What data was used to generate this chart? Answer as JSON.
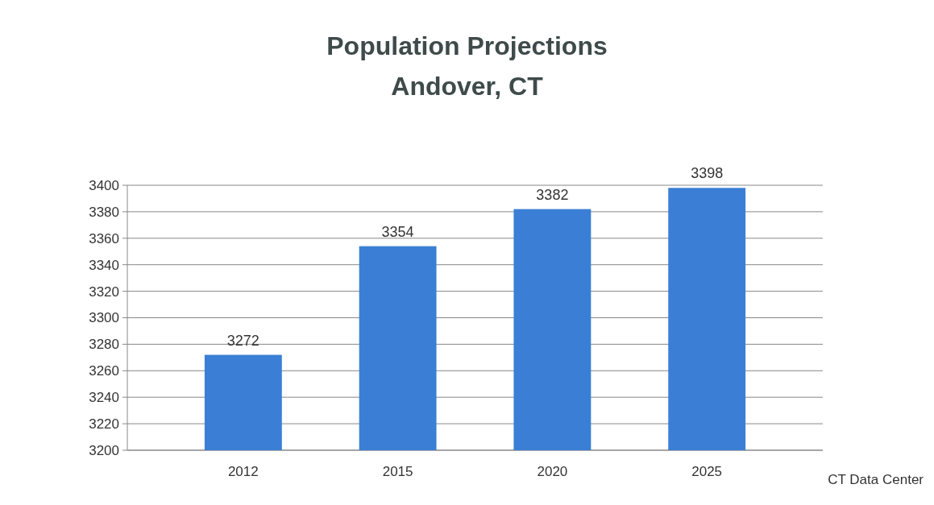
{
  "chart_data": {
    "type": "bar",
    "title": "Population Projections",
    "subtitle": "Andover, CT",
    "categories": [
      "2012",
      "2015",
      "2020",
      "2025"
    ],
    "values": [
      3272,
      3354,
      3382,
      3398
    ],
    "color": "#3a7fd5",
    "ylim": [
      3200,
      3400
    ],
    "yticks": [
      3200,
      3220,
      3240,
      3260,
      3280,
      3300,
      3320,
      3340,
      3360,
      3380,
      3400
    ],
    "grid": "y",
    "data_labels": true,
    "annotations": [
      "CT Data Center"
    ]
  }
}
